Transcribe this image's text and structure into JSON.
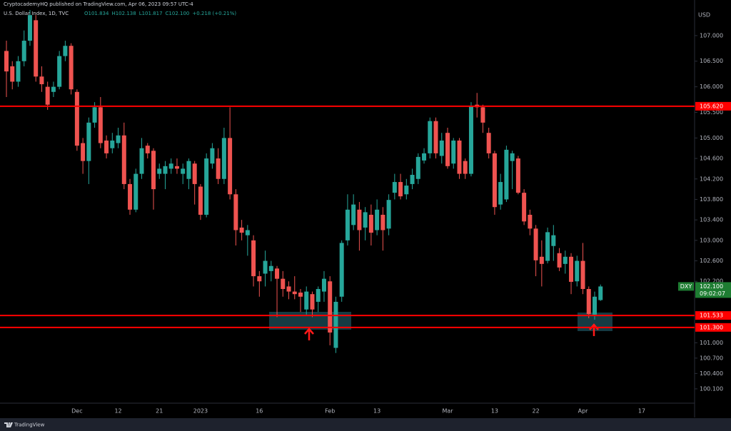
{
  "chart_data": {
    "type": "candlestick",
    "header": {
      "publisher": "CryptocademyHQ published on TradingView.com, Apr 06, 2023 09:57 UTC-4",
      "symbol": "U.S. Dollar Index, 1D, TVC",
      "ohlc": [
        "O101.834",
        "H102.138",
        "L101.817",
        "C102.100",
        "+0.218 (+0.21%)"
      ]
    },
    "currency": "USD",
    "watermark": "TradingView",
    "up_color": "#26a69a",
    "down_color": "#ef5350",
    "categories": [
      null,
      null,
      null,
      null,
      null,
      null,
      null,
      null,
      null,
      null,
      null,
      null,
      "Dec",
      null,
      null,
      null,
      null,
      null,
      null,
      "12",
      null,
      null,
      null,
      null,
      null,
      null,
      "21",
      null,
      null,
      null,
      null,
      null,
      null,
      "2023",
      null,
      null,
      null,
      null,
      null,
      null,
      null,
      null,
      null,
      "16",
      null,
      null,
      null,
      null,
      null,
      null,
      null,
      null,
      null,
      null,
      null,
      "Feb",
      null,
      null,
      null,
      null,
      null,
      null,
      null,
      "13",
      null,
      null,
      null,
      null,
      null,
      null,
      null,
      null,
      null,
      null,
      null,
      "Mar",
      null,
      null,
      null,
      null,
      null,
      null,
      null,
      "13",
      null,
      null,
      null,
      null,
      null,
      null,
      "22",
      null,
      null,
      null,
      null,
      null,
      null,
      null,
      "Apr",
      null,
      null,
      null,
      null,
      null,
      null,
      null,
      null,
      null,
      "17"
    ],
    "open": [
      106.7,
      106.4,
      106.1,
      106.5,
      106.9,
      107.3,
      106.2,
      106.0,
      105.9,
      106.0,
      106.6,
      106.8,
      105.9,
      104.9,
      104.55,
      105.3,
      105.6,
      104.95,
      104.8,
      104.9,
      105.05,
      104.1,
      103.6,
      104.3,
      104.85,
      104.75,
      104.3,
      104.3,
      104.4,
      104.45,
      104.3,
      104.2,
      104.5,
      104.05,
      103.5,
      104.5,
      104.6,
      104.2,
      105.0,
      103.9,
      103.25,
      103.1,
      103.0,
      102.3,
      102.35,
      102.4,
      102.45,
      102.25,
      102.1,
      102.0,
      101.98,
      101.65,
      101.95,
      101.8,
      102.0,
      102.2,
      100.9,
      101.9,
      103.0,
      103.3,
      103.6,
      103.25,
      103.5,
      103.2,
      103.5,
      103.23,
      103.93,
      104.14,
      103.9,
      104.1,
      104.2,
      104.56,
      104.7,
      105.33,
      104.65,
      105.1,
      104.5,
      104.95,
      104.55,
      104.3,
      105.65,
      105.6,
      105.1,
      104.7,
      103.7,
      103.8,
      104.55,
      104.6,
      103.93,
      103.5,
      103.23,
      102.68,
      102.6,
      102.89,
      102.75,
      102.54,
      102.68,
      102.2,
      102.6,
      102.05,
      101.55,
      101.834,
      null,
      null,
      null,
      null,
      null,
      null,
      null
    ],
    "high": [
      106.9,
      106.5,
      106.6,
      107.1,
      107.5,
      107.4,
      106.4,
      106.1,
      106.1,
      106.7,
      106.9,
      106.85,
      105.95,
      105.0,
      105.4,
      105.7,
      105.8,
      105.05,
      105.1,
      105.2,
      105.3,
      104.2,
      104.4,
      105.0,
      104.9,
      104.8,
      104.5,
      104.55,
      104.6,
      104.6,
      104.5,
      104.6,
      104.55,
      104.1,
      104.7,
      104.9,
      104.8,
      105.2,
      105.6,
      104.0,
      103.4,
      103.3,
      103.1,
      102.4,
      102.8,
      102.6,
      102.5,
      102.4,
      102.2,
      102.3,
      102.05,
      102.1,
      102.0,
      102.1,
      102.4,
      102.3,
      101.9,
      103.0,
      103.9,
      103.9,
      103.75,
      103.65,
      103.7,
      103.8,
      103.65,
      103.9,
      104.3,
      104.3,
      104.2,
      104.4,
      104.7,
      104.8,
      105.4,
      105.4,
      105.1,
      105.2,
      105.0,
      105.0,
      104.6,
      105.7,
      105.88,
      105.65,
      105.2,
      104.75,
      104.3,
      104.85,
      104.75,
      104.65,
      104.0,
      103.6,
      103.3,
      103.0,
      103.25,
      103.3,
      102.85,
      102.8,
      102.75,
      102.7,
      102.95,
      102.1,
      102.0,
      102.138,
      null,
      null,
      null,
      null,
      null,
      null,
      null
    ],
    "low": [
      105.8,
      105.95,
      106.0,
      106.4,
      106.8,
      106.1,
      105.9,
      105.55,
      105.8,
      105.95,
      106.5,
      105.85,
      104.75,
      104.3,
      104.1,
      105.2,
      104.8,
      104.6,
      104.7,
      104.8,
      104.0,
      103.5,
      103.55,
      104.2,
      104.6,
      103.6,
      104.2,
      104.0,
      104.3,
      104.3,
      104.1,
      104.0,
      103.7,
      103.4,
      103.45,
      104.4,
      104.1,
      104.1,
      103.8,
      102.9,
      103.0,
      102.7,
      102.1,
      101.9,
      102.1,
      102.2,
      101.5,
      101.9,
      101.85,
      101.85,
      101.6,
      101.55,
      101.5,
      101.6,
      101.8,
      100.95,
      100.8,
      101.8,
      102.9,
      103.2,
      102.8,
      103.0,
      102.9,
      103.1,
      102.8,
      103.1,
      103.8,
      103.8,
      103.8,
      104.0,
      104.1,
      104.5,
      104.6,
      104.6,
      104.5,
      104.4,
      104.4,
      104.2,
      104.2,
      104.25,
      105.4,
      105.1,
      104.6,
      103.5,
      103.6,
      103.75,
      104.0,
      103.9,
      103.3,
      103.1,
      102.3,
      102.1,
      102.55,
      102.6,
      102.4,
      102.35,
      101.95,
      102.1,
      101.95,
      101.48,
      101.45,
      101.817,
      null,
      null,
      null,
      null,
      null,
      null,
      null
    ],
    "close": [
      106.3,
      106.1,
      106.5,
      106.9,
      107.4,
      106.2,
      106.05,
      105.65,
      106.0,
      106.6,
      106.8,
      105.95,
      104.85,
      104.55,
      105.3,
      105.6,
      104.9,
      104.7,
      104.95,
      105.05,
      104.1,
      103.6,
      104.3,
      104.8,
      104.7,
      104.0,
      104.4,
      104.45,
      104.5,
      104.4,
      104.4,
      104.55,
      104.1,
      103.5,
      104.6,
      104.8,
      104.2,
      105.0,
      103.9,
      103.2,
      103.15,
      103.2,
      102.3,
      102.2,
      102.6,
      102.5,
      102.25,
      102.05,
      102.0,
      101.95,
      101.9,
      102.0,
      101.65,
      102.05,
      102.25,
      101.2,
      101.8,
      102.95,
      103.6,
      103.7,
      103.2,
      103.55,
      103.15,
      103.6,
      103.2,
      103.79,
      104.14,
      103.86,
      104.07,
      104.28,
      104.63,
      104.7,
      105.33,
      104.7,
      104.95,
      104.45,
      104.95,
      104.3,
      104.3,
      105.62,
      105.6,
      105.3,
      104.7,
      103.65,
      104.14,
      104.77,
      104.7,
      103.93,
      103.37,
      103.23,
      102.61,
      102.54,
      103.16,
      103.1,
      102.47,
      102.68,
      102.19,
      102.6,
      102.05,
      101.56,
      101.9,
      102.1,
      null,
      null,
      null,
      null,
      null,
      null,
      null
    ],
    "ylim": [
      99.82,
      107.5
    ],
    "yticks": [
      {
        "value": 100.1,
        "label": "100.100"
      },
      {
        "value": 100.4,
        "label": "100.400"
      },
      {
        "value": 100.7,
        "label": "100.700"
      },
      {
        "value": 101,
        "label": "101.000"
      },
      {
        "value": 102.2,
        "label": "102.200"
      },
      {
        "value": 102.6,
        "label": "102.600"
      },
      {
        "value": 103,
        "label": "103.000"
      },
      {
        "value": 103.4,
        "label": "103.400"
      },
      {
        "value": 103.8,
        "label": "103.800"
      },
      {
        "value": 104.2,
        "label": "104.200"
      },
      {
        "value": 104.6,
        "label": "104.600"
      },
      {
        "value": 105,
        "label": "105.000"
      },
      {
        "value": 105.5,
        "label": "105.500"
      },
      {
        "value": 106,
        "label": "106.000"
      },
      {
        "value": 106.5,
        "label": "106.500"
      },
      {
        "value": 107,
        "label": "107.000"
      }
    ],
    "hlines": [
      {
        "value": 105.62,
        "label": "105.620",
        "color": "#ff0000"
      },
      {
        "value": 101.533,
        "label": "101.533",
        "color": "#ff0000"
      },
      {
        "value": 101.3,
        "label": "101.300",
        "color": "#ff0000"
      }
    ],
    "last_price": {
      "symbol": "DXY",
      "value": 102.1,
      "label": "102.100",
      "countdown": "09:02:07",
      "color": "#1e7d32"
    }
  }
}
